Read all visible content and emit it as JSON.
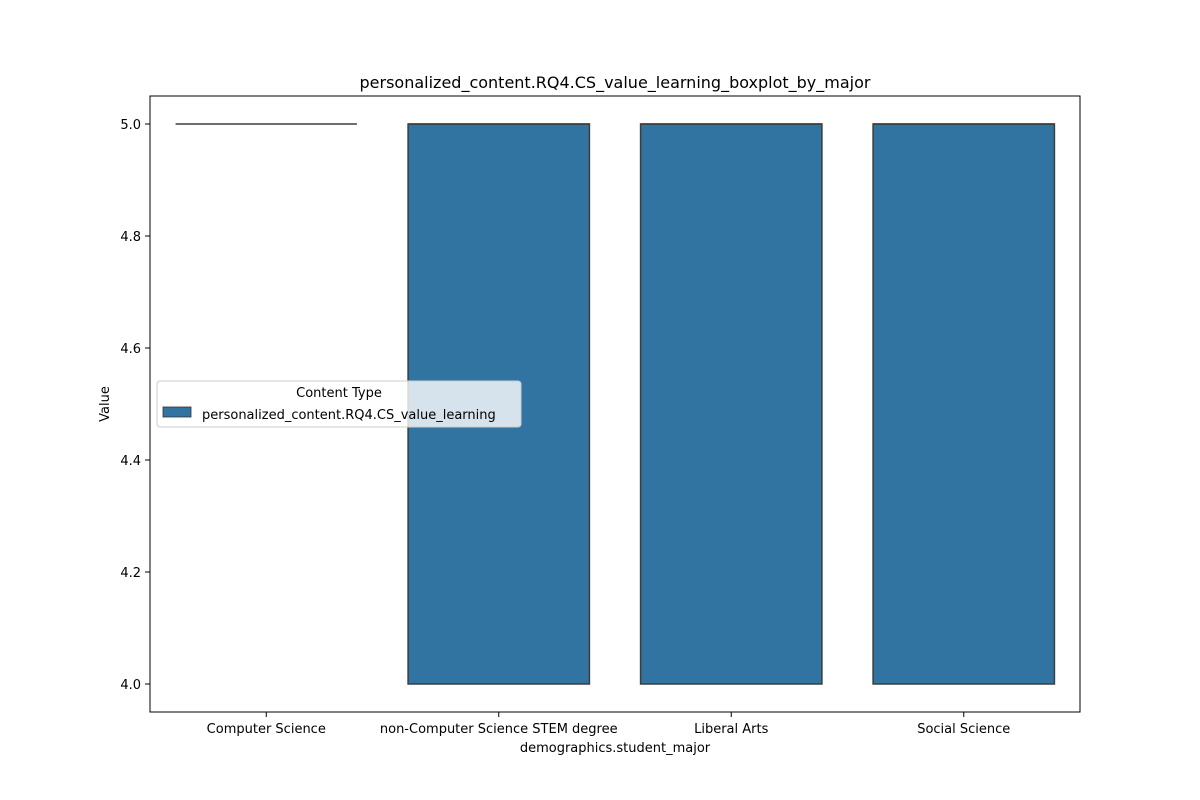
{
  "chart_data": {
    "type": "boxplot",
    "title": "personalized_content.RQ4.CS_value_learning_boxplot_by_major",
    "xlabel": "demographics.student_major",
    "ylabel": "Value",
    "categories": [
      "Computer Science",
      "non-Computer Science STEM degree",
      "Liberal Arts",
      "Social Science"
    ],
    "ylim": [
      3.95,
      5.05
    ],
    "yticks": [
      4.0,
      4.2,
      4.4,
      4.6,
      4.8,
      5.0
    ],
    "ytick_labels": [
      "4.0",
      "4.2",
      "4.4",
      "4.6",
      "4.8",
      "5.0"
    ],
    "series": [
      {
        "name": "personalized_content.RQ4.CS_value_learning",
        "color": "#3274a1",
        "boxes": [
          {
            "q1": 5.0,
            "median": 5.0,
            "q3": 5.0,
            "whisker_low": 5.0,
            "whisker_high": 5.0
          },
          {
            "q1": 4.0,
            "median": 5.0,
            "q3": 5.0,
            "whisker_low": 4.0,
            "whisker_high": 5.0
          },
          {
            "q1": 4.0,
            "median": 5.0,
            "q3": 5.0,
            "whisker_low": 4.0,
            "whisker_high": 5.0
          },
          {
            "q1": 4.0,
            "median": 5.0,
            "q3": 5.0,
            "whisker_low": 4.0,
            "whisker_high": 5.0
          }
        ]
      }
    ],
    "legend": {
      "title": "Content Type",
      "placement": "center-left"
    },
    "grid": false
  }
}
